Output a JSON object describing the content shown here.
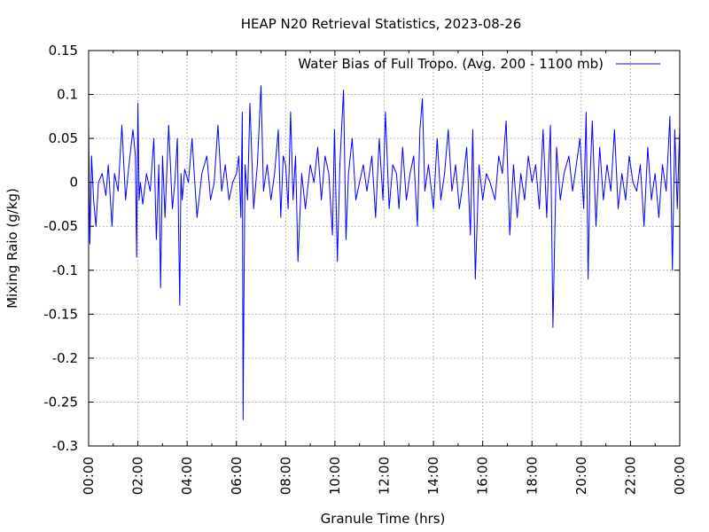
{
  "chart_data": {
    "type": "line",
    "title": "HEAP N20 Retrieval Statistics, 2023-08-26",
    "xlabel": "Granule Time (hrs)",
    "ylabel": "Mixing Raio (g/kg)",
    "xlim": [
      0,
      24
    ],
    "ylim": [
      -0.3,
      0.15
    ],
    "x_ticks": [
      "00:00",
      "02:00",
      "04:00",
      "06:00",
      "08:00",
      "10:00",
      "12:00",
      "14:00",
      "16:00",
      "18:00",
      "20:00",
      "22:00",
      "00:00"
    ],
    "y_ticks": [
      0.15,
      0.1,
      0.05,
      0,
      -0.05,
      -0.1,
      -0.15,
      -0.2,
      -0.25,
      -0.3
    ],
    "y_tick_labels": [
      "0.15",
      "0.1",
      "0.05",
      "0",
      "-0.05",
      "-0.1",
      "-0.15",
      "-0.2",
      "-0.25",
      "-0.3"
    ],
    "grid": true,
    "legend_position": "top-right",
    "series": [
      {
        "name": "Water Bias of Full Tropo. (Avg. 200 - 1100 mb)",
        "color": "#0000ff",
        "x": [
          0.0,
          0.05,
          0.12,
          0.2,
          0.3,
          0.4,
          0.55,
          0.7,
          0.8,
          0.95,
          1.05,
          1.2,
          1.35,
          1.5,
          1.6,
          1.7,
          1.8,
          1.9,
          1.95,
          2.0,
          2.05,
          2.1,
          2.2,
          2.35,
          2.5,
          2.65,
          2.75,
          2.85,
          2.92,
          3.0,
          3.1,
          3.25,
          3.4,
          3.5,
          3.6,
          3.7,
          3.75,
          3.8,
          3.9,
          4.05,
          4.2,
          4.4,
          4.6,
          4.8,
          4.95,
          5.1,
          5.25,
          5.4,
          5.55,
          5.7,
          5.85,
          6.0,
          6.1,
          6.18,
          6.24,
          6.27,
          6.3,
          6.35,
          6.45,
          6.55,
          6.7,
          6.85,
          7.0,
          7.1,
          7.25,
          7.4,
          7.55,
          7.7,
          7.8,
          7.9,
          8.0,
          8.1,
          8.2,
          8.3,
          8.4,
          8.5,
          8.65,
          8.8,
          9.0,
          9.15,
          9.3,
          9.45,
          9.6,
          9.75,
          9.9,
          9.98,
          10.1,
          10.2,
          10.35,
          10.45,
          10.55,
          10.7,
          10.85,
          11.0,
          11.15,
          11.3,
          11.5,
          11.65,
          11.8,
          11.95,
          12.05,
          12.2,
          12.35,
          12.5,
          12.6,
          12.75,
          12.9,
          13.05,
          13.2,
          13.35,
          13.45,
          13.55,
          13.65,
          13.8,
          14.0,
          14.15,
          14.3,
          14.45,
          14.6,
          14.75,
          14.9,
          15.05,
          15.2,
          15.35,
          15.5,
          15.6,
          15.7,
          15.85,
          16.0,
          16.15,
          16.3,
          16.5,
          16.65,
          16.8,
          16.95,
          17.1,
          17.25,
          17.4,
          17.55,
          17.7,
          17.85,
          18.0,
          18.15,
          18.3,
          18.45,
          18.6,
          18.68,
          18.75,
          18.85,
          19.0,
          19.15,
          19.3,
          19.5,
          19.65,
          19.8,
          19.95,
          20.1,
          20.2,
          20.28,
          20.35,
          20.45,
          20.6,
          20.75,
          20.9,
          21.05,
          21.2,
          21.35,
          21.5,
          21.65,
          21.8,
          21.95,
          22.1,
          22.25,
          22.4,
          22.55,
          22.7,
          22.85,
          23.0,
          23.15,
          23.3,
          23.45,
          23.6,
          23.7,
          23.8,
          23.9,
          24.0
        ],
        "y": [
          0.065,
          -0.07,
          0.03,
          -0.02,
          -0.05,
          0.0,
          0.01,
          -0.015,
          0.02,
          -0.05,
          0.01,
          -0.01,
          0.065,
          -0.02,
          0.01,
          0.035,
          0.06,
          0.03,
          -0.085,
          0.09,
          -0.02,
          0.0,
          -0.025,
          0.01,
          -0.01,
          0.05,
          -0.065,
          0.02,
          -0.12,
          0.03,
          -0.04,
          0.065,
          -0.03,
          0.0,
          0.05,
          -0.14,
          0.01,
          -0.02,
          0.015,
          0.0,
          0.05,
          -0.04,
          0.01,
          0.03,
          -0.02,
          0.0,
          0.065,
          -0.01,
          0.02,
          -0.02,
          0.0,
          0.01,
          0.03,
          -0.04,
          0.08,
          -0.27,
          -0.15,
          0.02,
          -0.02,
          0.09,
          -0.03,
          0.02,
          0.11,
          -0.01,
          0.02,
          -0.02,
          0.01,
          0.06,
          -0.04,
          0.03,
          0.02,
          -0.03,
          0.08,
          -0.02,
          0.03,
          -0.09,
          0.01,
          -0.03,
          0.02,
          0.0,
          0.04,
          -0.02,
          0.03,
          0.01,
          -0.06,
          0.06,
          -0.09,
          0.02,
          0.105,
          -0.065,
          0.01,
          0.05,
          -0.02,
          0.0,
          0.02,
          -0.01,
          0.03,
          -0.04,
          0.05,
          -0.02,
          0.08,
          -0.03,
          0.02,
          0.01,
          -0.03,
          0.04,
          -0.02,
          0.01,
          0.03,
          -0.05,
          0.06,
          0.095,
          -0.01,
          0.02,
          -0.03,
          0.05,
          -0.02,
          0.01,
          0.06,
          -0.01,
          0.02,
          -0.03,
          0.0,
          0.04,
          -0.06,
          0.06,
          -0.11,
          0.02,
          -0.02,
          0.01,
          0.0,
          -0.02,
          0.03,
          0.01,
          0.07,
          -0.06,
          0.02,
          -0.04,
          0.01,
          -0.02,
          0.03,
          0.0,
          0.02,
          -0.03,
          0.06,
          -0.04,
          0.02,
          0.065,
          -0.165,
          0.04,
          -0.02,
          0.01,
          0.03,
          -0.01,
          0.02,
          0.05,
          -0.03,
          0.08,
          -0.11,
          0.0,
          0.07,
          -0.05,
          0.04,
          -0.02,
          0.02,
          -0.01,
          0.06,
          -0.03,
          0.01,
          -0.02,
          0.03,
          0.0,
          -0.01,
          0.02,
          -0.05,
          0.04,
          -0.02,
          0.01,
          -0.04,
          0.02,
          -0.01,
          0.075,
          -0.1,
          0.06,
          -0.03,
          0.065
        ]
      }
    ]
  }
}
